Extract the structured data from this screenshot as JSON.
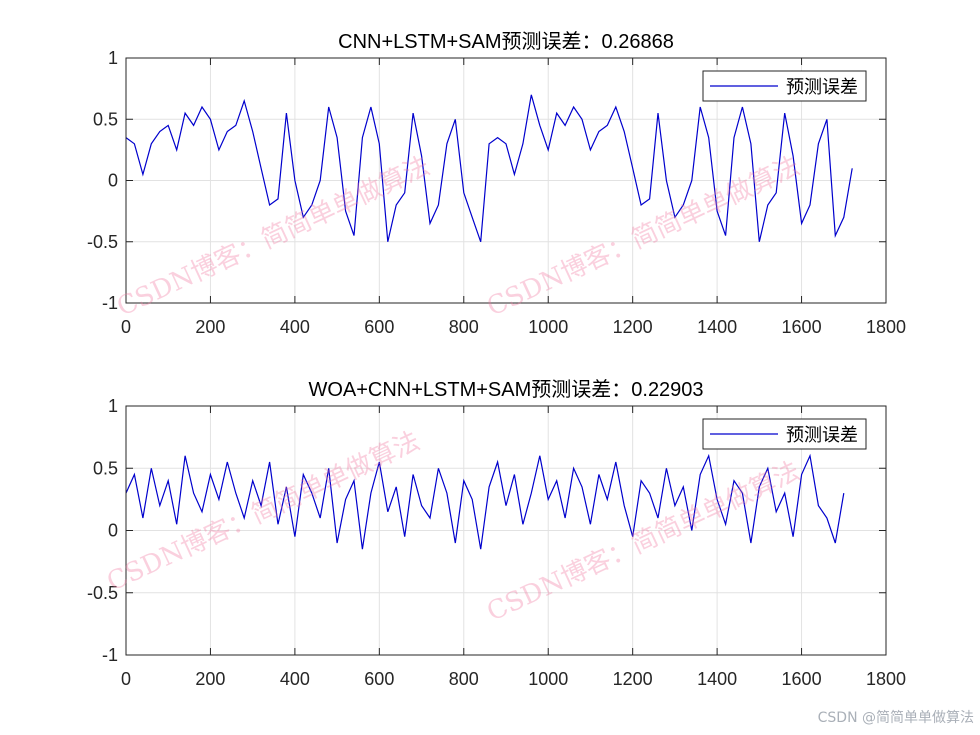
{
  "chart_data": [
    {
      "type": "line",
      "title": "CNN+LSTM+SAM预测误差：0.26868",
      "xlim": [
        0,
        1800
      ],
      "ylim": [
        -1,
        1
      ],
      "xticks": [
        0,
        200,
        400,
        600,
        800,
        1000,
        1200,
        1400,
        1600,
        1800
      ],
      "yticks": [
        -1,
        -0.5,
        0,
        0.5,
        1
      ],
      "grid": true,
      "legend_position": "top-right",
      "series": [
        {
          "name": "预测误差",
          "color": "#0000cd",
          "x_step": 20,
          "values": [
            0.35,
            0.3,
            0.05,
            0.3,
            0.4,
            0.45,
            0.25,
            0.55,
            0.45,
            0.6,
            0.5,
            0.25,
            0.4,
            0.45,
            0.65,
            0.4,
            0.1,
            -0.2,
            -0.15,
            0.55,
            0.0,
            -0.3,
            -0.2,
            0.0,
            0.6,
            0.35,
            -0.25,
            -0.45,
            0.35,
            0.6,
            0.3,
            -0.5,
            -0.2,
            -0.1,
            0.55,
            0.2,
            -0.35,
            -0.2,
            0.3,
            0.5,
            -0.1,
            -0.3,
            -0.5,
            0.3,
            0.35,
            0.3,
            0.05,
            0.3,
            0.7,
            0.45,
            0.25,
            0.55,
            0.45,
            0.6,
            0.5,
            0.25,
            0.4,
            0.45,
            0.6,
            0.4,
            0.1,
            -0.2,
            -0.15,
            0.55,
            0.0,
            -0.3,
            -0.2,
            0.0,
            0.6,
            0.35,
            -0.25,
            -0.45,
            0.35,
            0.6,
            0.3,
            -0.5,
            -0.2,
            -0.1,
            0.55,
            0.2,
            -0.35,
            -0.2,
            0.3,
            0.5,
            -0.45,
            -0.3,
            0.1
          ]
        }
      ]
    },
    {
      "type": "line",
      "title": "WOA+CNN+LSTM+SAM预测误差：0.22903",
      "xlim": [
        0,
        1800
      ],
      "ylim": [
        -1,
        1
      ],
      "xticks": [
        0,
        200,
        400,
        600,
        800,
        1000,
        1200,
        1400,
        1600,
        1800
      ],
      "yticks": [
        -1,
        -0.5,
        0,
        0.5,
        1
      ],
      "grid": true,
      "legend_position": "top-right",
      "series": [
        {
          "name": "预测误差",
          "color": "#0000cd",
          "x_step": 20,
          "values": [
            0.3,
            0.45,
            0.1,
            0.5,
            0.2,
            0.4,
            0.05,
            0.6,
            0.3,
            0.15,
            0.45,
            0.25,
            0.55,
            0.3,
            0.1,
            0.4,
            0.2,
            0.55,
            0.05,
            0.35,
            -0.05,
            0.45,
            0.3,
            0.1,
            0.5,
            -0.1,
            0.25,
            0.4,
            -0.15,
            0.3,
            0.55,
            0.15,
            0.35,
            -0.05,
            0.45,
            0.2,
            0.1,
            0.5,
            0.3,
            -0.1,
            0.4,
            0.25,
            -0.15,
            0.35,
            0.55,
            0.2,
            0.45,
            0.05,
            0.3,
            0.6,
            0.25,
            0.4,
            0.1,
            0.5,
            0.35,
            0.05,
            0.45,
            0.25,
            0.55,
            0.2,
            -0.05,
            0.4,
            0.3,
            0.1,
            0.5,
            0.2,
            0.35,
            0.0,
            0.45,
            0.6,
            0.25,
            0.05,
            0.4,
            0.3,
            -0.1,
            0.35,
            0.5,
            0.15,
            0.3,
            -0.05,
            0.45,
            0.6,
            0.2,
            0.1,
            -0.1,
            0.3
          ]
        }
      ]
    }
  ],
  "watermark": "CSDN博客：简简单单做算法",
  "credit": "CSDN @简简单单做算法"
}
